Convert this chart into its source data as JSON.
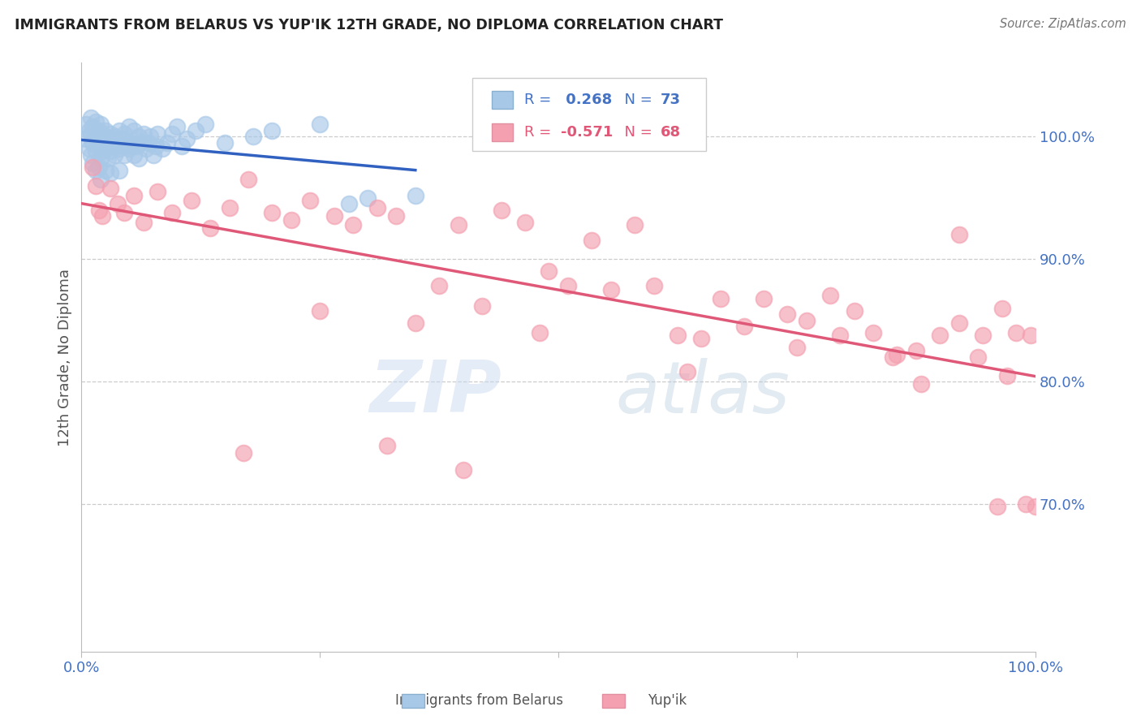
{
  "title": "IMMIGRANTS FROM BELARUS VS YUP'IK 12TH GRADE, NO DIPLOMA CORRELATION CHART",
  "source": "Source: ZipAtlas.com",
  "ylabel": "12th Grade, No Diploma",
  "watermark": "ZIPatlas",
  "legend_blue_r": "R =  0.268",
  "legend_blue_n": "N = 73",
  "legend_pink_r": "R = -0.571",
  "legend_pink_n": "N = 68",
  "blue_color": "#a8c8e8",
  "pink_color": "#f4a0b0",
  "blue_line_color": "#3060c0",
  "pink_line_color": "#e05878",
  "axis_label_color": "#4472c4",
  "legend_r_blue_color": "#4472c4",
  "legend_r_pink_color": "#e05878",
  "xlim": [
    0.0,
    1.0
  ],
  "ylim": [
    0.58,
    1.06
  ],
  "right_yticks": [
    0.7,
    0.8,
    0.9,
    1.0
  ],
  "right_yticklabels": [
    "70.0%",
    "80.0%",
    "90.0%",
    "100.0%"
  ],
  "blue_scatter_x": [
    0.005,
    0.005,
    0.008,
    0.008,
    0.01,
    0.01,
    0.01,
    0.012,
    0.012,
    0.012,
    0.015,
    0.015,
    0.015,
    0.015,
    0.018,
    0.018,
    0.018,
    0.02,
    0.02,
    0.02,
    0.02,
    0.022,
    0.022,
    0.025,
    0.025,
    0.025,
    0.028,
    0.028,
    0.03,
    0.03,
    0.03,
    0.032,
    0.035,
    0.035,
    0.038,
    0.04,
    0.04,
    0.04,
    0.042,
    0.045,
    0.045,
    0.048,
    0.05,
    0.05,
    0.052,
    0.055,
    0.055,
    0.058,
    0.06,
    0.06,
    0.062,
    0.065,
    0.068,
    0.07,
    0.072,
    0.075,
    0.078,
    0.08,
    0.085,
    0.09,
    0.095,
    0.1,
    0.105,
    0.11,
    0.12,
    0.13,
    0.15,
    0.18,
    0.2,
    0.25,
    0.28,
    0.3,
    0.35
  ],
  "blue_scatter_y": [
    1.01,
    0.998,
    1.005,
    0.99,
    1.015,
    1.002,
    0.985,
    1.008,
    0.995,
    0.978,
    1.012,
    1.0,
    0.988,
    0.972,
    1.005,
    0.992,
    0.975,
    1.01,
    0.998,
    0.982,
    0.965,
    1.002,
    0.988,
    1.005,
    0.99,
    0.972,
    0.998,
    0.982,
    1.002,
    0.988,
    0.97,
    0.995,
    1.0,
    0.985,
    0.992,
    1.005,
    0.99,
    0.972,
    0.998,
    1.002,
    0.985,
    0.992,
    1.008,
    0.99,
    0.995,
    1.005,
    0.985,
    0.992,
    1.0,
    0.982,
    0.995,
    1.002,
    0.99,
    0.995,
    1.0,
    0.985,
    0.992,
    1.002,
    0.99,
    0.995,
    1.002,
    1.008,
    0.992,
    0.998,
    1.005,
    1.01,
    0.995,
    1.0,
    1.005,
    1.01,
    0.945,
    0.95,
    0.952
  ],
  "pink_scatter_x": [
    0.012,
    0.015,
    0.018,
    0.022,
    0.03,
    0.038,
    0.045,
    0.055,
    0.065,
    0.08,
    0.095,
    0.115,
    0.135,
    0.155,
    0.175,
    0.2,
    0.22,
    0.24,
    0.265,
    0.285,
    0.31,
    0.33,
    0.35,
    0.375,
    0.395,
    0.42,
    0.44,
    0.465,
    0.49,
    0.51,
    0.535,
    0.555,
    0.58,
    0.6,
    0.625,
    0.65,
    0.67,
    0.695,
    0.715,
    0.74,
    0.76,
    0.785,
    0.81,
    0.83,
    0.855,
    0.875,
    0.9,
    0.92,
    0.945,
    0.965,
    0.98,
    0.995,
    0.17,
    0.32,
    0.48,
    0.635,
    0.795,
    0.96,
    0.75,
    0.85,
    0.92,
    0.88,
    0.94,
    0.97,
    0.99,
    1.0,
    0.25,
    0.4
  ],
  "pink_scatter_y": [
    0.975,
    0.96,
    0.94,
    0.935,
    0.958,
    0.945,
    0.938,
    0.952,
    0.93,
    0.955,
    0.938,
    0.948,
    0.925,
    0.942,
    0.965,
    0.938,
    0.932,
    0.948,
    0.935,
    0.928,
    0.942,
    0.935,
    0.848,
    0.878,
    0.928,
    0.862,
    0.94,
    0.93,
    0.89,
    0.878,
    0.915,
    0.875,
    0.928,
    0.878,
    0.838,
    0.835,
    0.868,
    0.845,
    0.868,
    0.855,
    0.85,
    0.87,
    0.858,
    0.84,
    0.822,
    0.825,
    0.838,
    0.848,
    0.838,
    0.86,
    0.84,
    0.838,
    0.742,
    0.748,
    0.84,
    0.808,
    0.838,
    0.698,
    0.828,
    0.82,
    0.92,
    0.798,
    0.82,
    0.805,
    0.7,
    0.698,
    0.858,
    0.728
  ]
}
